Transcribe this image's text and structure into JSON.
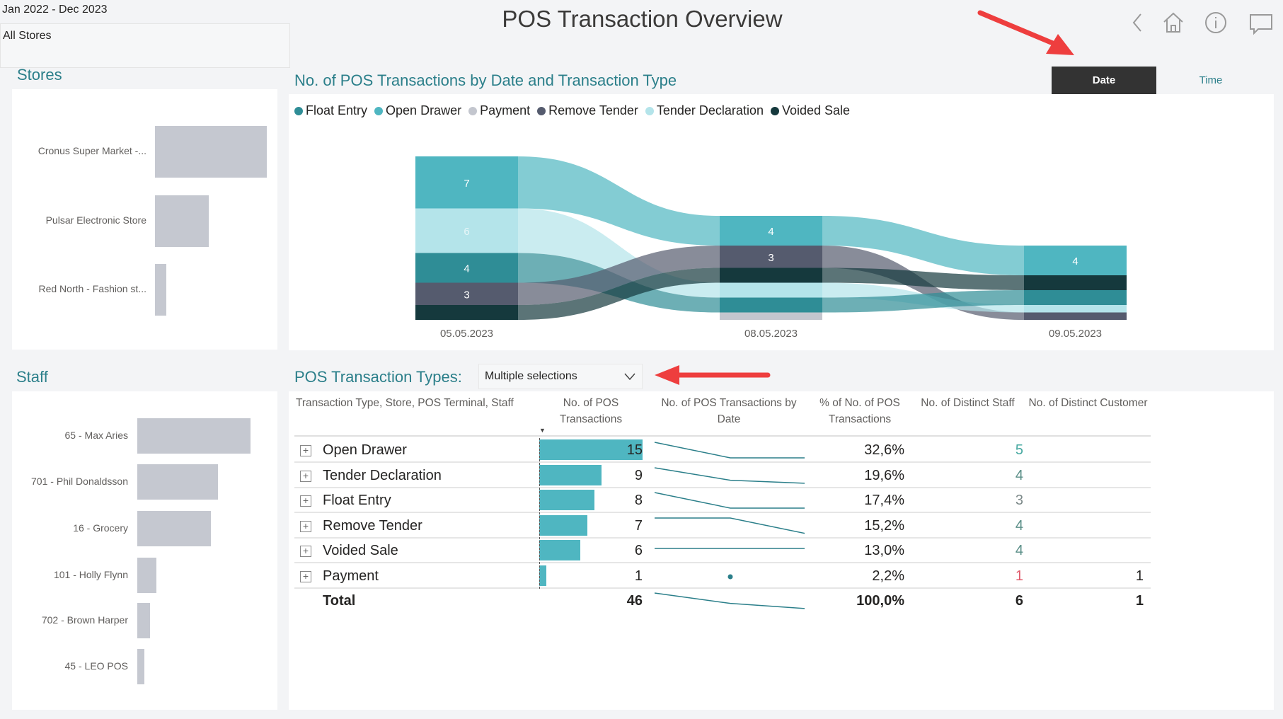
{
  "header": {
    "title": "POS Transaction Overview",
    "date_range": "Jan 2022 - Dec 2023",
    "store_filter": "All Stores"
  },
  "nav_icons": [
    "back-icon",
    "home-icon",
    "info-icon",
    "comment-icon"
  ],
  "toggle": {
    "date_label": "Date",
    "time_label": "Time",
    "active": "Date"
  },
  "stores": {
    "title": "Stores",
    "items": [
      {
        "label": "Cronus Super Market -...",
        "value": 100
      },
      {
        "label": "Pulsar Electronic Store",
        "value": 48
      },
      {
        "label": "Red North - Fashion st...",
        "value": 10
      }
    ]
  },
  "staff": {
    "title": "Staff",
    "items": [
      {
        "label": "65 - Max Aries",
        "value": 100
      },
      {
        "label": "701 - Phil Donaldsson",
        "value": 71
      },
      {
        "label": "16 - Grocery",
        "value": 65
      },
      {
        "label": "101 - Holly Flynn",
        "value": 17
      },
      {
        "label": "702 - Brown Harper",
        "value": 11
      },
      {
        "label": "45 - LEO POS",
        "value": 6
      }
    ]
  },
  "chart_data": {
    "type": "sankey-stacked-bar",
    "title": "No. of POS Transactions by Date and Transaction Type",
    "legend": [
      {
        "name": "Float Entry",
        "color": "#2f8d96"
      },
      {
        "name": "Open Drawer",
        "color": "#4fb6c1"
      },
      {
        "name": "Payment",
        "color": "#c3c6ce"
      },
      {
        "name": "Remove Tender",
        "color": "#555b6e"
      },
      {
        "name": "Tender Declaration",
        "color": "#b4e4ea"
      },
      {
        "name": "Voided Sale",
        "color": "#15393d"
      }
    ],
    "categories": [
      "05.05.2023",
      "08.05.2023",
      "09.05.2023"
    ],
    "stacks": [
      [
        {
          "type": "Open Drawer",
          "value": 7
        },
        {
          "type": "Tender Declaration",
          "value": 6
        },
        {
          "type": "Float Entry",
          "value": 4
        },
        {
          "type": "Remove Tender",
          "value": 3
        },
        {
          "type": "Voided Sale",
          "value": 2
        }
      ],
      [
        {
          "type": "Open Drawer",
          "value": 4
        },
        {
          "type": "Remove Tender",
          "value": 3
        },
        {
          "type": "Voided Sale",
          "value": 2
        },
        {
          "type": "Tender Declaration",
          "value": 2
        },
        {
          "type": "Float Entry",
          "value": 2
        },
        {
          "type": "Payment",
          "value": 1
        }
      ],
      [
        {
          "type": "Open Drawer",
          "value": 4
        },
        {
          "type": "Voided Sale",
          "value": 2
        },
        {
          "type": "Float Entry",
          "value": 2
        },
        {
          "type": "Tender Declaration",
          "value": 1
        },
        {
          "type": "Remove Tender",
          "value": 1
        }
      ]
    ],
    "label_min": 3
  },
  "table": {
    "slicer_label": "POS Transaction Types:",
    "slicer_value": "Multiple selections",
    "headers": [
      "Transaction Type, Store, POS Terminal, Staff",
      "No. of POS Transactions",
      "No. of POS Transactions by Date",
      "% of No. of POS Transactions",
      "No. of Distinct Staff",
      "No. of Distinct Customer"
    ],
    "rows": [
      {
        "name": "Open Drawer",
        "count": "15",
        "n": 15,
        "spark": [
          7,
          4,
          4
        ],
        "pct": "32,6%",
        "staff": "5",
        "staff_color": "#45a8a0",
        "customer": ""
      },
      {
        "name": "Tender Declaration",
        "count": "9",
        "n": 9,
        "spark": [
          6,
          2,
          1
        ],
        "pct": "19,6%",
        "staff": "4",
        "staff_color": "#5b8f88",
        "customer": ""
      },
      {
        "name": "Float Entry",
        "count": "8",
        "n": 8,
        "spark": [
          4,
          2,
          2
        ],
        "pct": "17,4%",
        "staff": "3",
        "staff_color": "#7d8a8a",
        "customer": ""
      },
      {
        "name": "Remove Tender",
        "count": "7",
        "n": 7,
        "spark": [
          3,
          3,
          1
        ],
        "pct": "15,2%",
        "staff": "4",
        "staff_color": "#5b8f88",
        "customer": ""
      },
      {
        "name": "Voided Sale",
        "count": "6",
        "n": 6,
        "spark": [
          2,
          2,
          2
        ],
        "pct": "13,0%",
        "staff": "4",
        "staff_color": "#5b8f88",
        "customer": ""
      },
      {
        "name": "Payment",
        "count": "1",
        "n": 1,
        "spark": [
          null,
          1,
          null
        ],
        "pct": "2,2%",
        "staff": "1",
        "staff_color": "#e05a6a",
        "customer": "1"
      }
    ],
    "total": {
      "name": "Total",
      "count": "46",
      "spark": [
        22,
        14,
        10
      ],
      "pct": "100,0%",
      "staff": "6",
      "customer": "1"
    }
  }
}
